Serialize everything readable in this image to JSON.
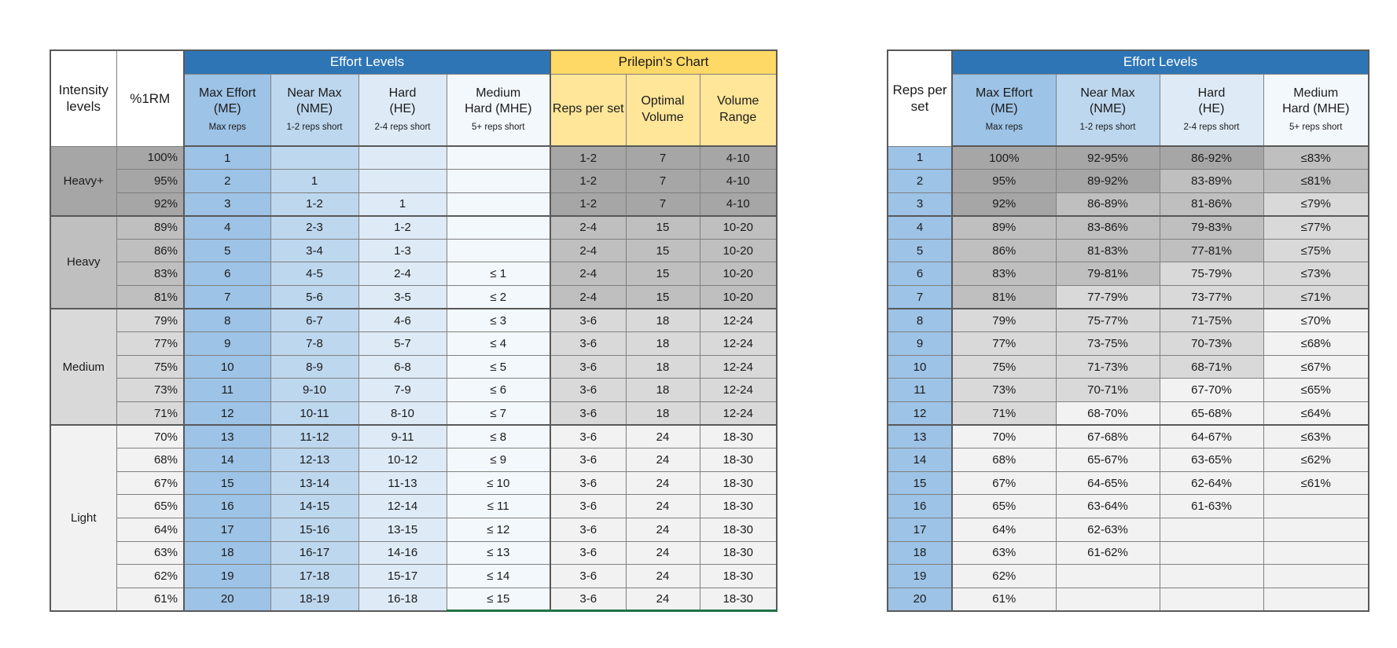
{
  "colors": {
    "header_blue": "#2E75B6",
    "max_effort_blue": "#9DC3E6",
    "near_max_blue": "#BDD7EE",
    "hard_blue": "#DEEBF7",
    "medium_hard_blue": "#F3F8FD",
    "prilepin_gold": "#FFD966",
    "prilepin_light_gold": "#FFE699",
    "zone_heavy_plus_gray": "#A6A6A6",
    "zone_heavy_gray": "#BFBFBF",
    "zone_medium_gray": "#D9D9D9",
    "zone_light_gray": "#F2F2F2",
    "gridline": "#808080",
    "outline": "#595959",
    "green_edge": "#217346"
  },
  "chart_data": [
    {
      "type": "table",
      "title": "Effort Levels and Prilepin's Chart by %1RM",
      "header": {
        "intensity": "Intensity levels",
        "rm": "%1RM",
        "effort_levels": "Effort Levels",
        "prilepin": "Prilepin's Chart",
        "effort_columns": [
          {
            "line1": "Max Effort",
            "line2": "(ME)",
            "sub": "Max reps"
          },
          {
            "line1": "Near Max",
            "line2": "(NME)",
            "sub": "1-2 reps short"
          },
          {
            "line1": "Hard",
            "line2": "(HE)",
            "sub": "2-4 reps short"
          },
          {
            "line1": "Medium",
            "line2": "Hard (MHE)",
            "sub": "5+ reps short"
          }
        ],
        "prilepin_columns": [
          "Reps per set",
          "Optimal Volume",
          "Volume Range"
        ]
      },
      "groups": [
        {
          "label": "Heavy+",
          "zone": "hp",
          "rows": [
            [
              "100%",
              "1",
              "",
              "",
              "",
              "1-2",
              "7",
              "4-10"
            ],
            [
              "95%",
              "2",
              "1",
              "",
              "",
              "1-2",
              "7",
              "4-10"
            ],
            [
              "92%",
              "3",
              "1-2",
              "1",
              "",
              "1-2",
              "7",
              "4-10"
            ]
          ]
        },
        {
          "label": "Heavy",
          "zone": "h",
          "rows": [
            [
              "89%",
              "4",
              "2-3",
              "1-2",
              "",
              "2-4",
              "15",
              "10-20"
            ],
            [
              "86%",
              "5",
              "3-4",
              "1-3",
              "",
              "2-4",
              "15",
              "10-20"
            ],
            [
              "83%",
              "6",
              "4-5",
              "2-4",
              "≤ 1",
              "2-4",
              "15",
              "10-20"
            ],
            [
              "81%",
              "7",
              "5-6",
              "3-5",
              "≤ 2",
              "2-4",
              "15",
              "10-20"
            ]
          ]
        },
        {
          "label": "Medium",
          "zone": "m",
          "rows": [
            [
              "79%",
              "8",
              "6-7",
              "4-6",
              "≤ 3",
              "3-6",
              "18",
              "12-24"
            ],
            [
              "77%",
              "9",
              "7-8",
              "5-7",
              "≤ 4",
              "3-6",
              "18",
              "12-24"
            ],
            [
              "75%",
              "10",
              "8-9",
              "6-8",
              "≤ 5",
              "3-6",
              "18",
              "12-24"
            ],
            [
              "73%",
              "11",
              "9-10",
              "7-9",
              "≤ 6",
              "3-6",
              "18",
              "12-24"
            ],
            [
              "71%",
              "12",
              "10-11",
              "8-10",
              "≤ 7",
              "3-6",
              "18",
              "12-24"
            ]
          ]
        },
        {
          "label": "Light",
          "zone": "l",
          "rows": [
            [
              "70%",
              "13",
              "11-12",
              "9-11",
              "≤ 8",
              "3-6",
              "24",
              "18-30"
            ],
            [
              "68%",
              "14",
              "12-13",
              "10-12",
              "≤ 9",
              "3-6",
              "24",
              "18-30"
            ],
            [
              "67%",
              "15",
              "13-14",
              "11-13",
              "≤ 10",
              "3-6",
              "24",
              "18-30"
            ],
            [
              "65%",
              "16",
              "14-15",
              "12-14",
              "≤ 11",
              "3-6",
              "24",
              "18-30"
            ],
            [
              "64%",
              "17",
              "15-16",
              "13-15",
              "≤ 12",
              "3-6",
              "24",
              "18-30"
            ],
            [
              "63%",
              "18",
              "16-17",
              "14-16",
              "≤ 13",
              "3-6",
              "24",
              "18-30"
            ],
            [
              "62%",
              "19",
              "17-18",
              "15-17",
              "≤ 14",
              "3-6",
              "24",
              "18-30"
            ],
            [
              "61%",
              "20",
              "18-19",
              "16-18",
              "≤ 15",
              "3-6",
              "24",
              "18-30"
            ]
          ]
        }
      ]
    },
    {
      "type": "table",
      "title": "Effort Levels by Reps per set",
      "header": {
        "reps": "Reps per set",
        "effort_levels": "Effort Levels",
        "effort_columns": [
          {
            "line1": "Max Effort",
            "line2": "(ME)",
            "sub": "Max reps"
          },
          {
            "line1": "Near Max",
            "line2": "(NME)",
            "sub": "1-2 reps short"
          },
          {
            "line1": "Hard",
            "line2": "(HE)",
            "sub": "2-4 reps short"
          },
          {
            "line1": "Medium",
            "line2": "Hard (MHE)",
            "sub": "5+ reps short"
          }
        ]
      },
      "separators_before": [
        3,
        7,
        12
      ],
      "rows": [
        {
          "reps": "1",
          "cells": [
            [
              "100%",
              "hp"
            ],
            [
              "92-95%",
              "hp"
            ],
            [
              "86-92%",
              "hp"
            ],
            [
              "≤83%",
              "h"
            ]
          ]
        },
        {
          "reps": "2",
          "cells": [
            [
              "95%",
              "hp"
            ],
            [
              "89-92%",
              "hp"
            ],
            [
              "83-89%",
              "h"
            ],
            [
              "≤81%",
              "h"
            ]
          ]
        },
        {
          "reps": "3",
          "cells": [
            [
              "92%",
              "hp"
            ],
            [
              "86-89%",
              "h"
            ],
            [
              "81-86%",
              "h"
            ],
            [
              "≤79%",
              "m"
            ]
          ]
        },
        {
          "reps": "4",
          "cells": [
            [
              "89%",
              "h"
            ],
            [
              "83-86%",
              "h"
            ],
            [
              "79-83%",
              "h"
            ],
            [
              "≤77%",
              "m"
            ]
          ]
        },
        {
          "reps": "5",
          "cells": [
            [
              "86%",
              "h"
            ],
            [
              "81-83%",
              "h"
            ],
            [
              "77-81%",
              "h"
            ],
            [
              "≤75%",
              "m"
            ]
          ]
        },
        {
          "reps": "6",
          "cells": [
            [
              "83%",
              "h"
            ],
            [
              "79-81%",
              "h"
            ],
            [
              "75-79%",
              "m"
            ],
            [
              "≤73%",
              "m"
            ]
          ]
        },
        {
          "reps": "7",
          "cells": [
            [
              "81%",
              "h"
            ],
            [
              "77-79%",
              "m"
            ],
            [
              "73-77%",
              "m"
            ],
            [
              "≤71%",
              "m"
            ]
          ]
        },
        {
          "reps": "8",
          "cells": [
            [
              "79%",
              "m"
            ],
            [
              "75-77%",
              "m"
            ],
            [
              "71-75%",
              "m"
            ],
            [
              "≤70%",
              "l"
            ]
          ]
        },
        {
          "reps": "9",
          "cells": [
            [
              "77%",
              "m"
            ],
            [
              "73-75%",
              "m"
            ],
            [
              "70-73%",
              "m"
            ],
            [
              "≤68%",
              "l"
            ]
          ]
        },
        {
          "reps": "10",
          "cells": [
            [
              "75%",
              "m"
            ],
            [
              "71-73%",
              "m"
            ],
            [
              "68-71%",
              "m"
            ],
            [
              "≤67%",
              "l"
            ]
          ]
        },
        {
          "reps": "11",
          "cells": [
            [
              "73%",
              "m"
            ],
            [
              "70-71%",
              "m"
            ],
            [
              "67-70%",
              "l"
            ],
            [
              "≤65%",
              "l"
            ]
          ]
        },
        {
          "reps": "12",
          "cells": [
            [
              "71%",
              "m"
            ],
            [
              "68-70%",
              "l"
            ],
            [
              "65-68%",
              "l"
            ],
            [
              "≤64%",
              "l"
            ]
          ]
        },
        {
          "reps": "13",
          "cells": [
            [
              "70%",
              "l"
            ],
            [
              "67-68%",
              "l"
            ],
            [
              "64-67%",
              "l"
            ],
            [
              "≤63%",
              "l"
            ]
          ]
        },
        {
          "reps": "14",
          "cells": [
            [
              "68%",
              "l"
            ],
            [
              "65-67%",
              "l"
            ],
            [
              "63-65%",
              "l"
            ],
            [
              "≤62%",
              "l"
            ]
          ]
        },
        {
          "reps": "15",
          "cells": [
            [
              "67%",
              "l"
            ],
            [
              "64-65%",
              "l"
            ],
            [
              "62-64%",
              "l"
            ],
            [
              "≤61%",
              "l"
            ]
          ]
        },
        {
          "reps": "16",
          "cells": [
            [
              "65%",
              "l"
            ],
            [
              "63-64%",
              "l"
            ],
            [
              "61-63%",
              "l"
            ],
            [
              "",
              "l"
            ]
          ]
        },
        {
          "reps": "17",
          "cells": [
            [
              "64%",
              "l"
            ],
            [
              "62-63%",
              "l"
            ],
            [
              "",
              "l"
            ],
            [
              "",
              "l"
            ]
          ]
        },
        {
          "reps": "18",
          "cells": [
            [
              "63%",
              "l"
            ],
            [
              "61-62%",
              "l"
            ],
            [
              "",
              "l"
            ],
            [
              "",
              "l"
            ]
          ]
        },
        {
          "reps": "19",
          "cells": [
            [
              "62%",
              "l"
            ],
            [
              "",
              "l"
            ],
            [
              "",
              "l"
            ],
            [
              "",
              "l"
            ]
          ]
        },
        {
          "reps": "20",
          "cells": [
            [
              "61%",
              "l"
            ],
            [
              "",
              "l"
            ],
            [
              "",
              "l"
            ],
            [
              "",
              "l"
            ]
          ]
        }
      ]
    }
  ]
}
